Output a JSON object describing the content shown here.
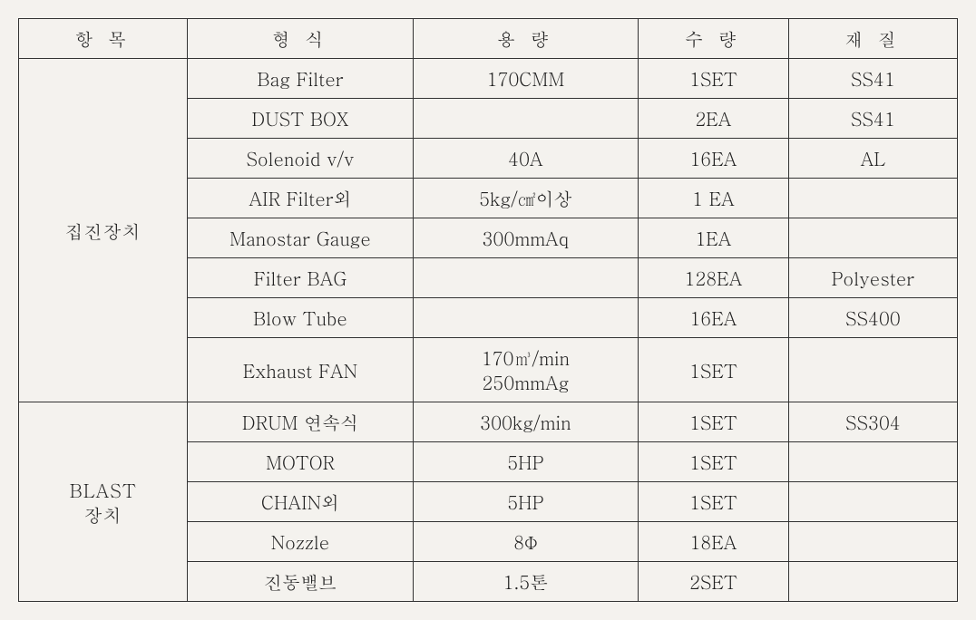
{
  "columns": {
    "item": "항 목",
    "type": "형 식",
    "capacity": "용 량",
    "qty": "수 량",
    "material": "재 질"
  },
  "groups": [
    {
      "name": "집진장치",
      "rows": [
        {
          "type": "Bag Filter",
          "capacity": "170CMM",
          "qty": "1SET",
          "material": "SS41"
        },
        {
          "type": "DUST BOX",
          "capacity": "",
          "qty": "2EA",
          "material": "SS41"
        },
        {
          "type": "Solenoid v/v",
          "capacity": "40A",
          "qty": "16EA",
          "material": "AL"
        },
        {
          "type": "AIR Filter외",
          "capacity": "5kg/㎠이상",
          "qty": "1 EA",
          "material": ""
        },
        {
          "type": "Manostar Gauge",
          "capacity": "300mmAq",
          "qty": "1EA",
          "material": ""
        },
        {
          "type": "Filter BAG",
          "capacity": "",
          "qty": "128EA",
          "material": "Polyester"
        },
        {
          "type": "Blow Tube",
          "capacity": "",
          "qty": "16EA",
          "material": "SS400"
        },
        {
          "type": "Exhaust FAN",
          "capacity": "170㎥/min\n250mmAg",
          "qty": "1SET",
          "material": ""
        }
      ]
    },
    {
      "name": "BLAST\n장치",
      "rows": [
        {
          "type": "DRUM 연속식",
          "capacity": "300kg/min",
          "qty": "1SET",
          "material": "SS304"
        },
        {
          "type": "MOTOR",
          "capacity": "5HP",
          "qty": "1SET",
          "material": ""
        },
        {
          "type": "CHAIN외",
          "capacity": "5HP",
          "qty": "1SET",
          "material": ""
        },
        {
          "type": "Nozzle",
          "capacity": "8Φ",
          "qty": "18EA",
          "material": ""
        },
        {
          "type": "진동밸브",
          "capacity": "1.5톤",
          "qty": "2SET",
          "material": ""
        }
      ]
    }
  ]
}
